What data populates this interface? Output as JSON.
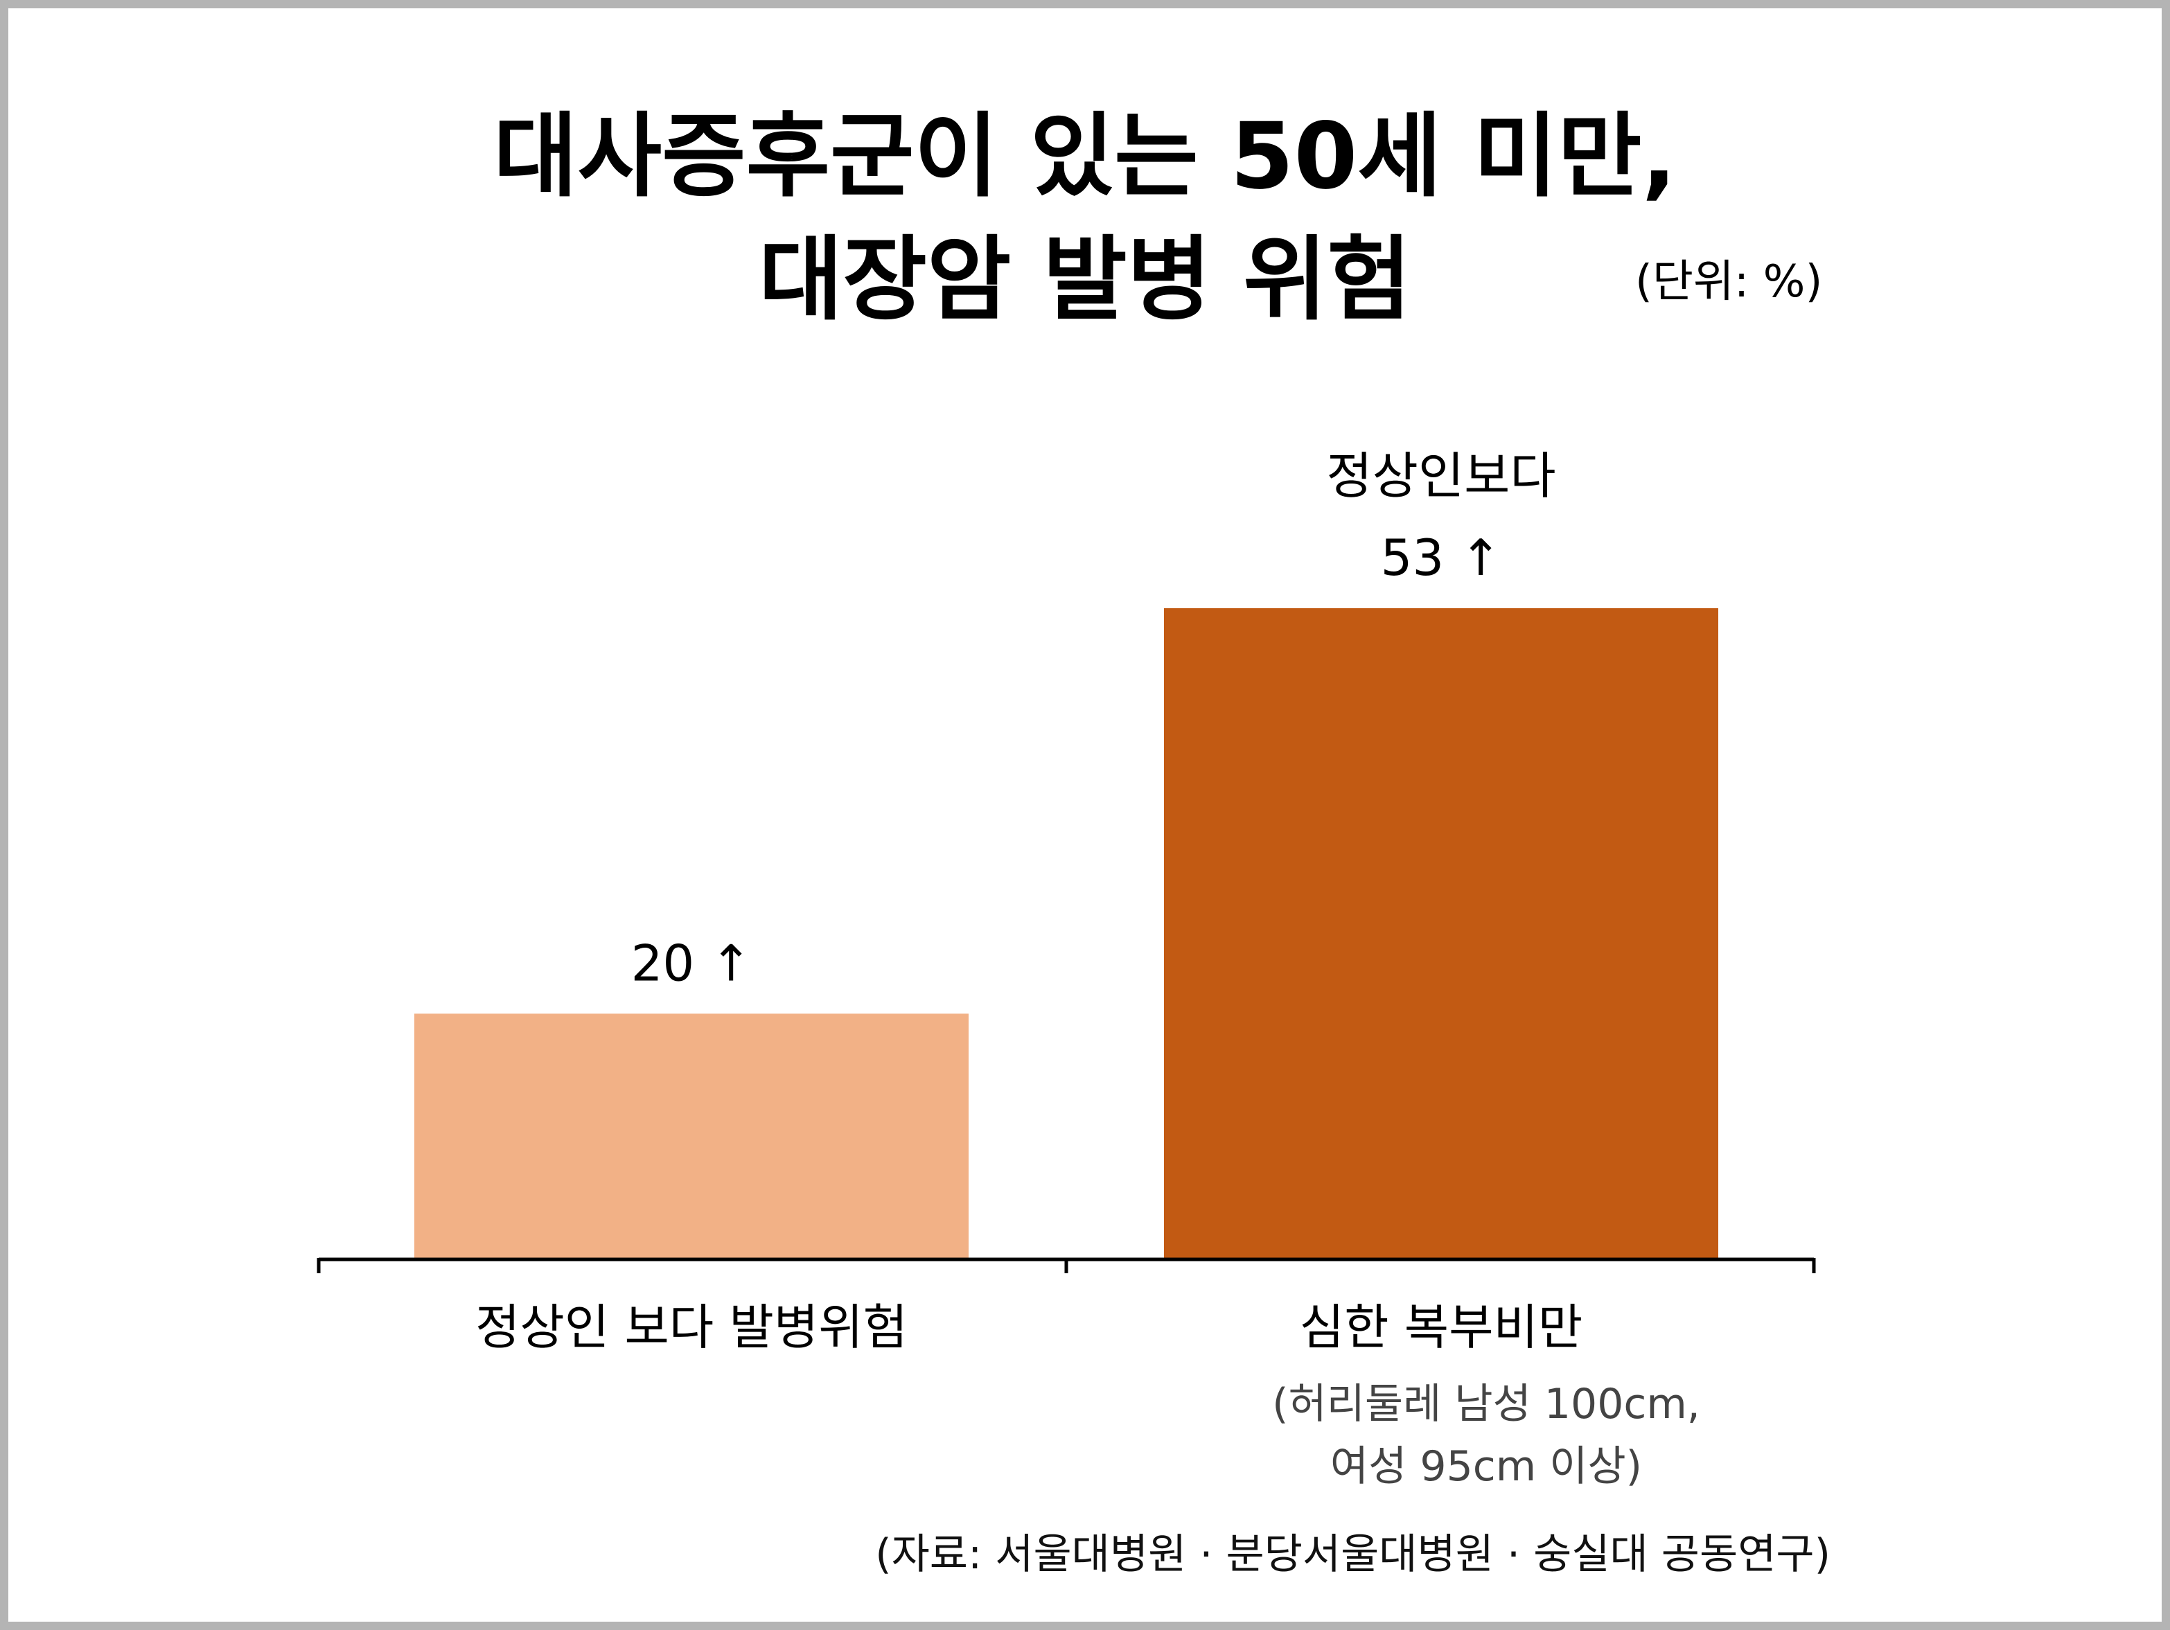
{
  "title_lines": [
    "대사증후군이 있는 50세 미만,",
    "대장암 발병 위험"
  ],
  "unit_label": "(단위: %)",
  "source": "(자료: 서울대병원 · 분당서울대병원 · 숭실대 공동연구)",
  "colors": {
    "bar_light": "#F2B186",
    "bar_dark": "#C25A13",
    "axis": "#000000",
    "frame": "#B4B4B4"
  },
  "chart_data": {
    "type": "bar",
    "ylim": [
      0,
      60
    ],
    "categories": [
      {
        "label": "정상인 보다 발병위험",
        "sublabels": []
      },
      {
        "label": "심한 복부비만",
        "sublabels": [
          "(허리둘레 남성 100cm,",
          "여성 95cm 이상)"
        ]
      }
    ],
    "values": [
      20,
      53
    ],
    "value_labels": [
      [
        "20 ↑"
      ],
      [
        "정상인보다",
        "53 ↑"
      ]
    ],
    "bar_colors": [
      "#F2B186",
      "#C25A13"
    ],
    "grid": false,
    "legend": "none"
  }
}
